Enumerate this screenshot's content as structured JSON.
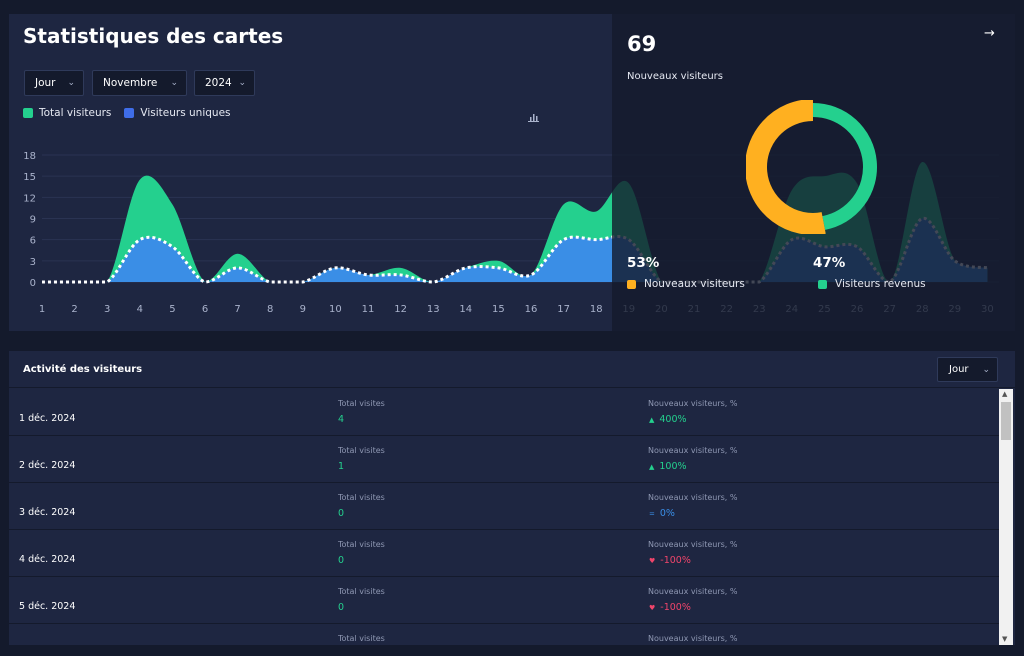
{
  "stats": {
    "title": "Statistiques des cartes",
    "filters": {
      "period": "Jour",
      "month": "Novembre",
      "year": "2024"
    },
    "legend": {
      "total": "Total visiteurs",
      "unique": "Visiteurs uniques"
    },
    "chart_icon": "bar-chart-icon",
    "colors": {
      "total": "#24d08e",
      "unique": "#3a8ee6",
      "new": "#ffb020"
    }
  },
  "chart_data": {
    "type": "area",
    "title": "",
    "xlabel": "",
    "ylabel": "",
    "x": [
      1,
      2,
      3,
      4,
      5,
      6,
      7,
      8,
      9,
      10,
      11,
      12,
      13,
      14,
      15,
      16,
      17,
      18,
      19,
      20,
      21,
      22,
      23,
      24,
      25,
      26,
      27,
      28,
      29,
      30
    ],
    "ylim": [
      0,
      18
    ],
    "yticks": [
      0,
      3,
      6,
      9,
      12,
      15,
      18
    ],
    "series": [
      {
        "name": "Total visiteurs",
        "values": [
          0,
          0,
          0,
          14.5,
          11,
          0,
          4,
          0,
          0,
          2,
          1,
          2,
          0,
          2,
          3,
          1,
          11,
          10,
          14,
          0,
          0,
          0,
          0,
          13,
          15,
          14,
          0,
          17,
          3,
          2
        ]
      },
      {
        "name": "Visiteurs uniques",
        "values": [
          0,
          0,
          0,
          6,
          5,
          0,
          2,
          0,
          0,
          2,
          1,
          1,
          0,
          2,
          2,
          1,
          6,
          6,
          6,
          0,
          0,
          0,
          0,
          6,
          5,
          5,
          0,
          9,
          3,
          2
        ]
      }
    ]
  },
  "summary": {
    "count": "69",
    "label": "Nouveaux visiteurs",
    "new_pct": "53%",
    "returning_pct": "47%",
    "new_label": "Nouveaux visiteurs",
    "returning_label": "Visiteurs revenus",
    "donut": {
      "new": 53,
      "returning": 47
    },
    "arrow_icon": "arrow-right-icon"
  },
  "activity": {
    "title": "Activité des visiteurs",
    "period": "Jour",
    "col_visits": "Total visites",
    "col_new": "Nouveaux visiteurs, %",
    "rows": [
      {
        "date": "1 déc. 2024",
        "visits": "4",
        "trend": "400%",
        "dir": "up"
      },
      {
        "date": "2 déc. 2024",
        "visits": "1",
        "trend": "100%",
        "dir": "up"
      },
      {
        "date": "3 déc. 2024",
        "visits": "0",
        "trend": "0%",
        "dir": "flat"
      },
      {
        "date": "4 déc. 2024",
        "visits": "0",
        "trend": "-100%",
        "dir": "down"
      },
      {
        "date": "5 déc. 2024",
        "visits": "0",
        "trend": "-100%",
        "dir": "down"
      },
      {
        "date": "",
        "visits": "",
        "trend": "",
        "dir": ""
      }
    ]
  }
}
